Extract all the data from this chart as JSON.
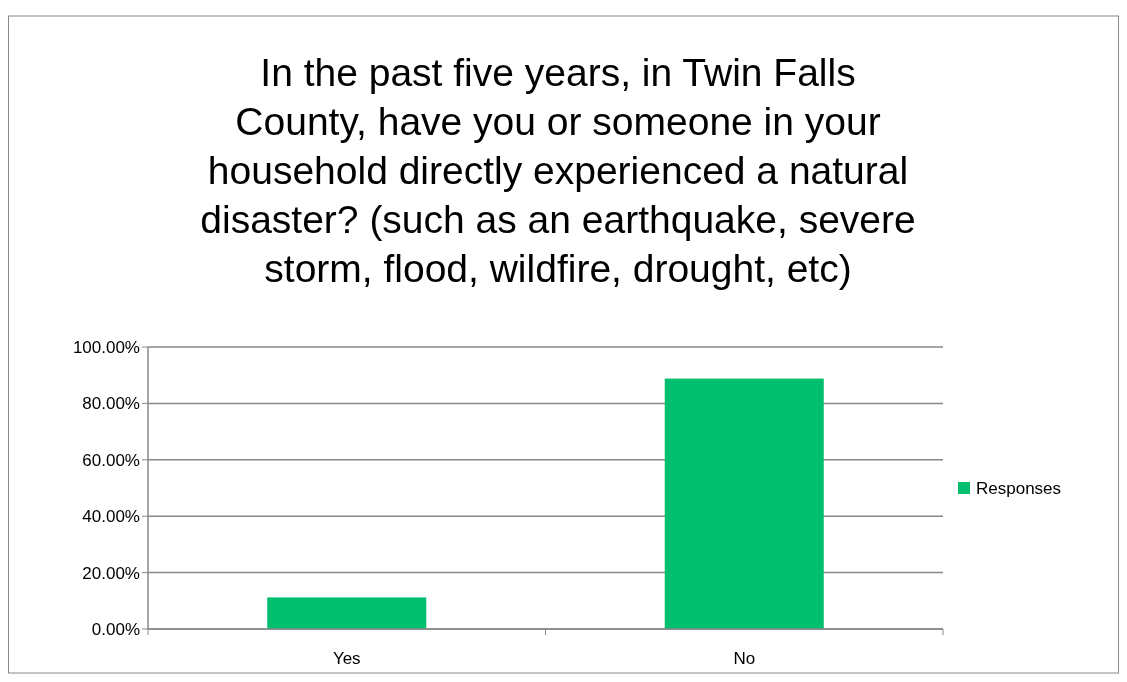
{
  "chart_data": {
    "type": "bar",
    "title": "In the past five years, in Twin Falls County, have you or someone in your household directly experienced a natural disaster? (such as an earthquake, severe storm, flood, wildfire, drought, etc)",
    "categories": [
      "Yes",
      "No"
    ],
    "series": [
      {
        "name": "Responses",
        "color": "#00bf6f",
        "values": [
          11.2,
          88.8
        ]
      }
    ],
    "ylim": [
      0,
      100
    ],
    "yticks": [
      {
        "value": 0,
        "label": "0.00%"
      },
      {
        "value": 20,
        "label": "20.00%"
      },
      {
        "value": 40,
        "label": "40.00%"
      },
      {
        "value": 60,
        "label": "60.00%"
      },
      {
        "value": 80,
        "label": "80.00%"
      },
      {
        "value": 100,
        "label": "100.00%"
      }
    ],
    "grid": "y",
    "legend": "right"
  }
}
